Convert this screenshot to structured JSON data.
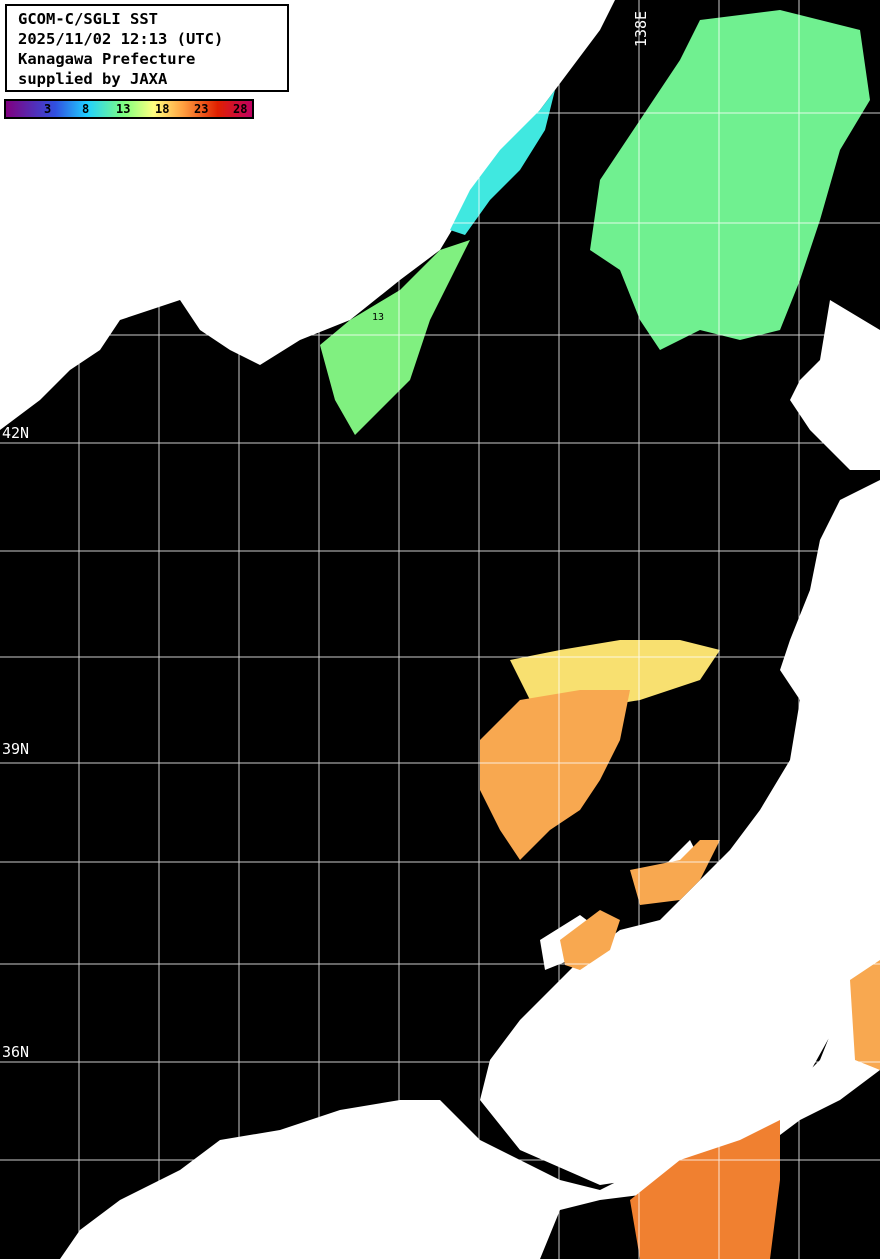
{
  "title_box": {
    "line1": "GCOM-C/SGLI SST",
    "line2": "2025/11/02 12:13 (UTC)",
    "line3": "Kanagawa Prefecture",
    "line4": "supplied by JAXA"
  },
  "colorbar": {
    "ticks": [
      "3",
      "8",
      "13",
      "18",
      "23",
      "28"
    ],
    "colors": [
      "#800080",
      "#3050e0",
      "#20d0ff",
      "#80ff80",
      "#ffff80",
      "#ffa040",
      "#e02000",
      "#c00060"
    ]
  },
  "grid_labels": {
    "lat": [
      "42N",
      "39N",
      "36N"
    ],
    "lon": [
      "138E"
    ]
  },
  "contour_label": "13",
  "colors": {
    "land": "#ffffff",
    "no_data": "#000000",
    "grid": "#ffffff"
  }
}
